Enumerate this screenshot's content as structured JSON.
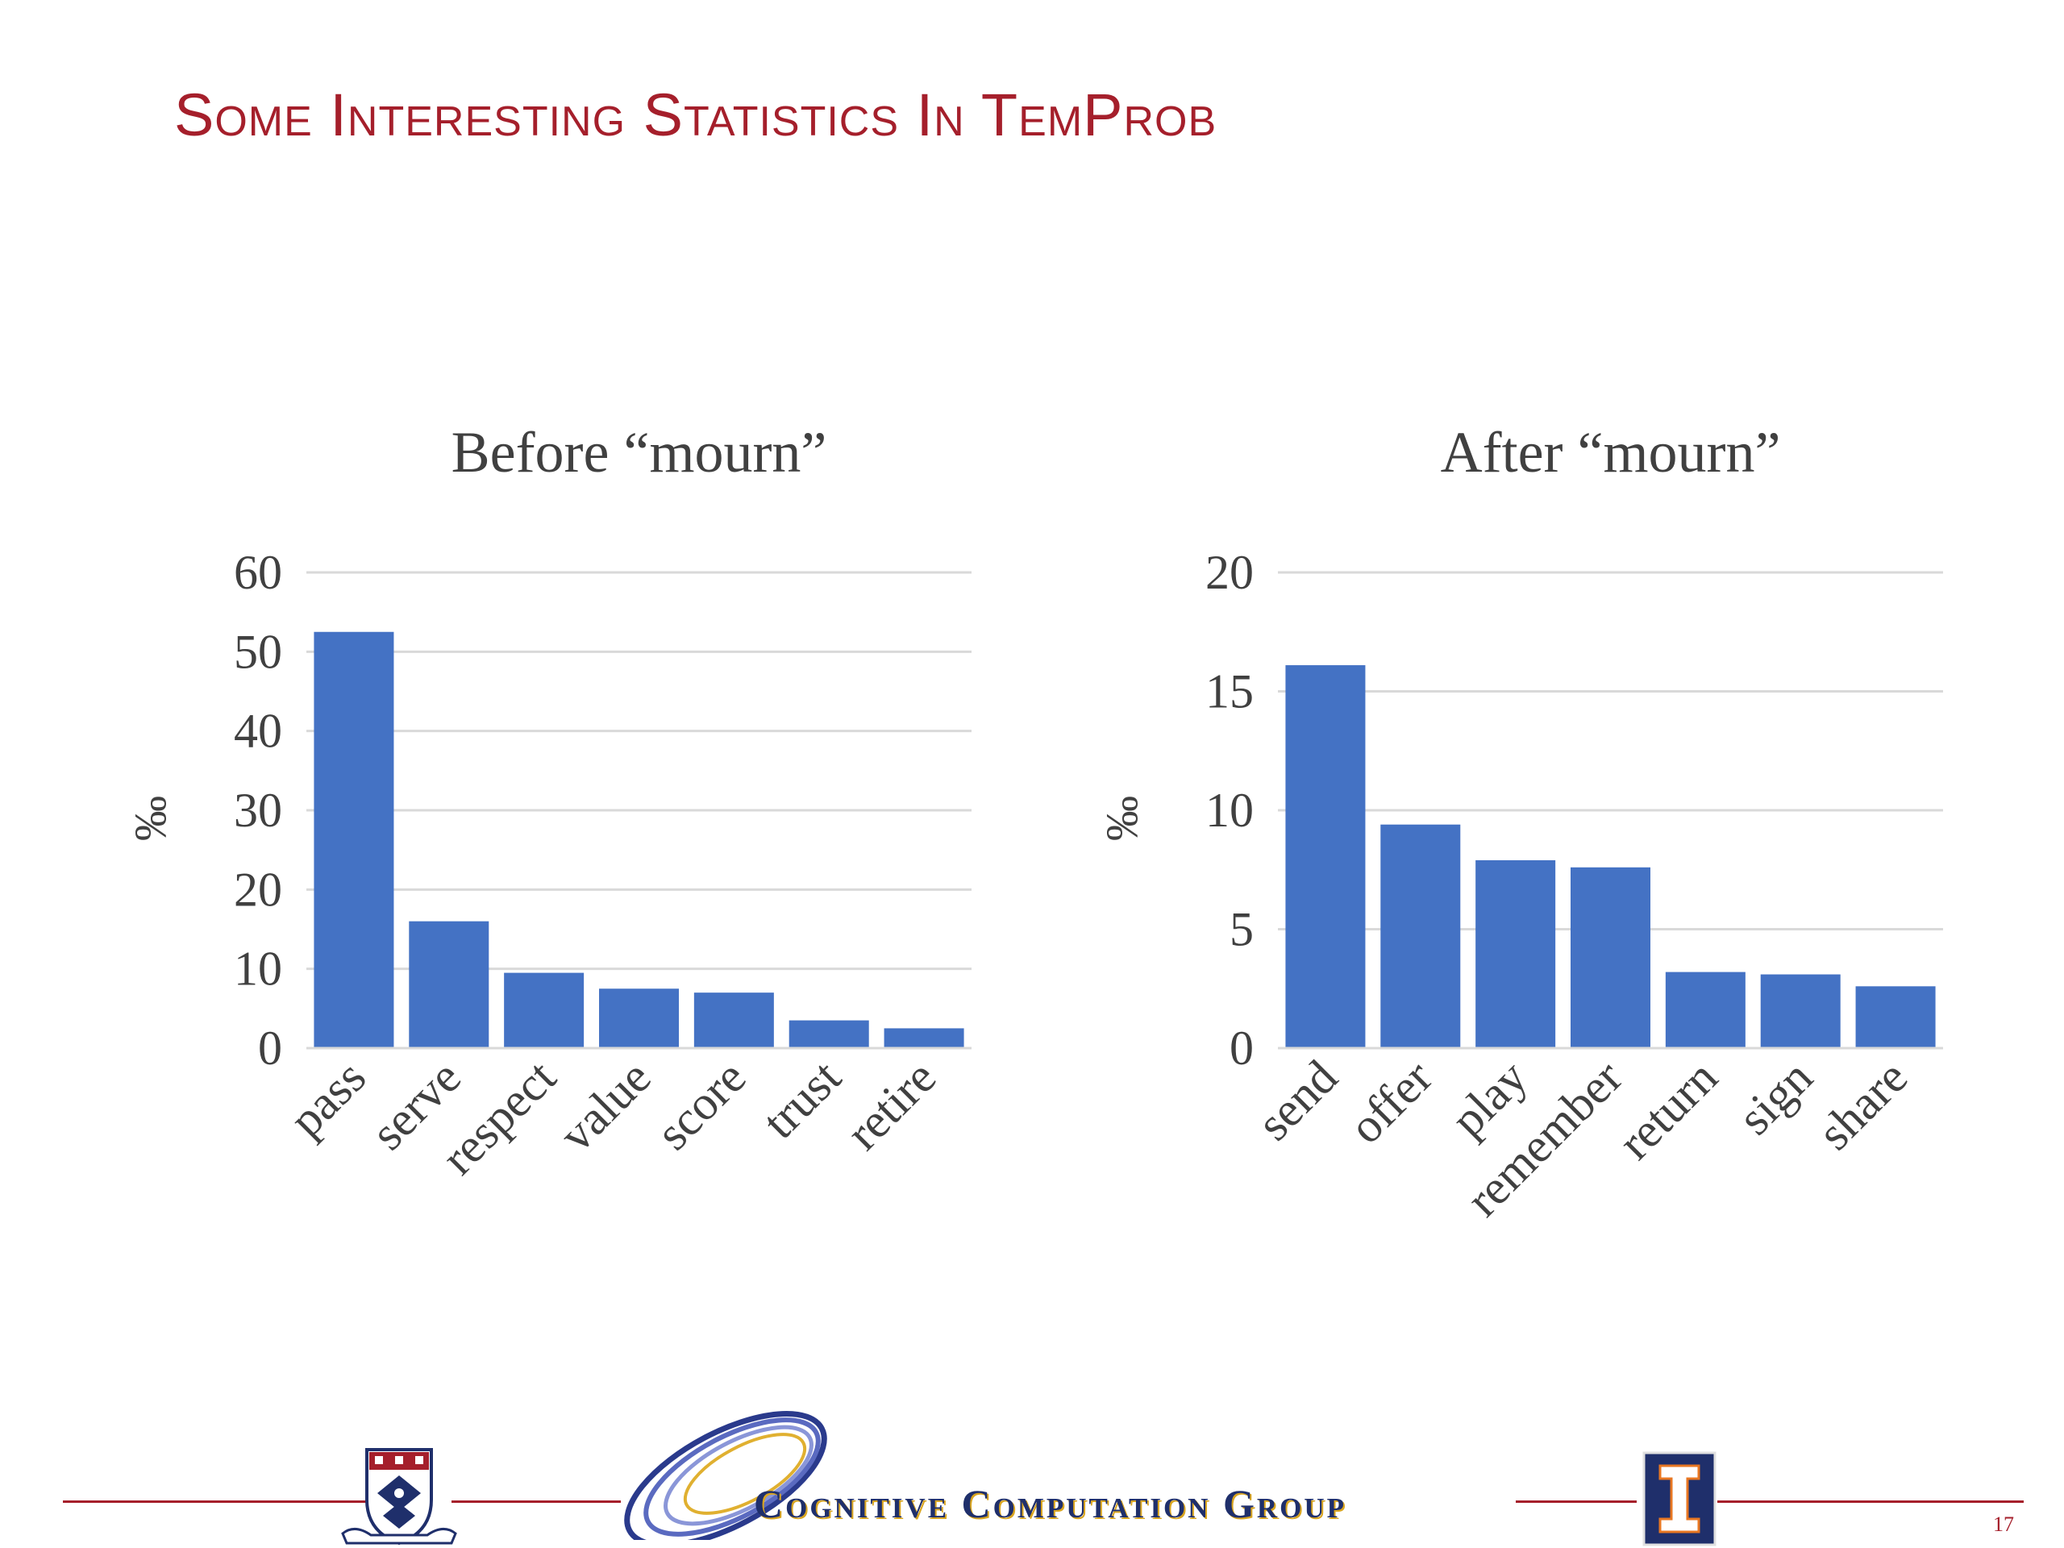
{
  "slide": {
    "title": "Some Interesting Statistics In TemProb",
    "page_number": "17"
  },
  "footer": {
    "group_name": "Cognitive Computation Group"
  },
  "colors": {
    "bar": "#4472C4",
    "title": "#A51F2B",
    "gridline": "#D9D9D9",
    "footer_line": "#A51F2B",
    "group_name": "#1F2F6B"
  },
  "chart_data": [
    {
      "type": "bar",
      "title": "Before “mourn”",
      "ylabel": "‰",
      "xlabel": "",
      "categories": [
        "pass",
        "serve",
        "respect",
        "value",
        "score",
        "trust",
        "retire"
      ],
      "values": [
        52.5,
        16,
        9.5,
        7.5,
        7,
        3.5,
        2.5
      ],
      "ylim": [
        0,
        60
      ],
      "yticks": [
        0,
        10,
        20,
        30,
        40,
        50,
        60
      ],
      "grid": true,
      "legend": "none"
    },
    {
      "type": "bar",
      "title": "After “mourn”",
      "ylabel": "‰",
      "xlabel": "",
      "categories": [
        "send",
        "offer",
        "play",
        "remember",
        "return",
        "sign",
        "share"
      ],
      "values": [
        16.1,
        9.4,
        7.9,
        7.6,
        3.2,
        3.1,
        2.6
      ],
      "ylim": [
        0,
        20
      ],
      "yticks": [
        0,
        5,
        10,
        15,
        20
      ],
      "grid": true,
      "legend": "none"
    }
  ]
}
